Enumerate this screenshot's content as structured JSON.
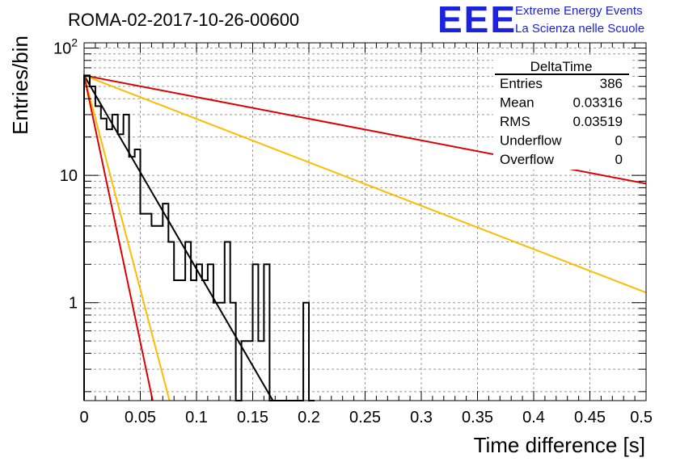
{
  "chart_data": {
    "type": "histogram",
    "title": "ROMA-02-2017-10-26-00600",
    "xlabel": "Time difference [s]",
    "ylabel": "Entries/bin",
    "x_range": [
      0,
      0.5
    ],
    "y_range": [
      0.17,
      110
    ],
    "y_scale": "log",
    "grid": true,
    "x_ticks": [
      "0",
      "0.05",
      "0.1",
      "0.15",
      "0.2",
      "0.25",
      "0.3",
      "0.35",
      "0.4",
      "0.45",
      "0.5"
    ],
    "y_ticks": [
      "10^2",
      "10",
      "1"
    ],
    "bin_width": 0.005,
    "bins": [
      {
        "x": 0.0,
        "value": 61
      },
      {
        "x": 0.005,
        "value": 50
      },
      {
        "x": 0.01,
        "value": 35
      },
      {
        "x": 0.015,
        "value": 28
      },
      {
        "x": 0.02,
        "value": 23
      },
      {
        "x": 0.025,
        "value": 30
      },
      {
        "x": 0.03,
        "value": 21
      },
      {
        "x": 0.035,
        "value": 30
      },
      {
        "x": 0.04,
        "value": 14
      },
      {
        "x": 0.045,
        "value": 16
      },
      {
        "x": 0.05,
        "value": 5
      },
      {
        "x": 0.055,
        "value": 5
      },
      {
        "x": 0.06,
        "value": 4
      },
      {
        "x": 0.065,
        "value": 4
      },
      {
        "x": 0.07,
        "value": 6
      },
      {
        "x": 0.075,
        "value": 3
      },
      {
        "x": 0.08,
        "value": 1.5
      },
      {
        "x": 0.085,
        "value": 1.5
      },
      {
        "x": 0.09,
        "value": 3
      },
      {
        "x": 0.095,
        "value": 1.5
      },
      {
        "x": 0.1,
        "value": 2
      },
      {
        "x": 0.105,
        "value": 1.5
      },
      {
        "x": 0.11,
        "value": 2
      },
      {
        "x": 0.115,
        "value": 1
      },
      {
        "x": 0.12,
        "value": 1
      },
      {
        "x": 0.125,
        "value": 3
      },
      {
        "x": 0.13,
        "value": 1
      },
      {
        "x": 0.135,
        "value": 0
      },
      {
        "x": 0.14,
        "value": 0.5
      },
      {
        "x": 0.145,
        "value": 0.5
      },
      {
        "x": 0.15,
        "value": 2
      },
      {
        "x": 0.155,
        "value": 0.5
      },
      {
        "x": 0.16,
        "value": 2
      },
      {
        "x": 0.165,
        "value": 0
      },
      {
        "x": 0.17,
        "value": 0
      },
      {
        "x": 0.175,
        "value": 0
      },
      {
        "x": 0.18,
        "value": 0
      },
      {
        "x": 0.185,
        "value": 0
      },
      {
        "x": 0.19,
        "value": 0
      },
      {
        "x": 0.195,
        "value": 1
      },
      {
        "x": 0.2,
        "value": 0
      }
    ],
    "fit_curves": [
      {
        "color": "#000000",
        "points": [
          [
            0.0,
            61
          ],
          [
            0.168,
            0.17
          ]
        ]
      },
      {
        "color": "#dd0000",
        "points": [
          [
            0.0,
            61
          ],
          [
            0.5,
            8.6
          ]
        ]
      },
      {
        "color": "#ffbb00",
        "points": [
          [
            0.0,
            61
          ],
          [
            0.5,
            1.2
          ]
        ]
      },
      {
        "color": "#ffbb00",
        "points": [
          [
            0.0,
            61
          ],
          [
            0.076,
            0.17
          ]
        ]
      },
      {
        "color": "#dd0000",
        "points": [
          [
            0.0,
            61
          ],
          [
            0.061,
            0.17
          ]
        ]
      }
    ],
    "stats": {
      "name": "DeltaTime",
      "rows": [
        {
          "label": "Entries",
          "value": "386"
        },
        {
          "label": "Mean",
          "value": "0.03316"
        },
        {
          "label": "RMS",
          "value": "0.03519"
        },
        {
          "label": "Underflow",
          "value": "0"
        },
        {
          "label": "Overflow",
          "value": "0"
        }
      ]
    }
  },
  "logo": {
    "text": "EEE",
    "line1": "Extreme Energy Events",
    "line2": "La Scienza nelle Scuole"
  }
}
